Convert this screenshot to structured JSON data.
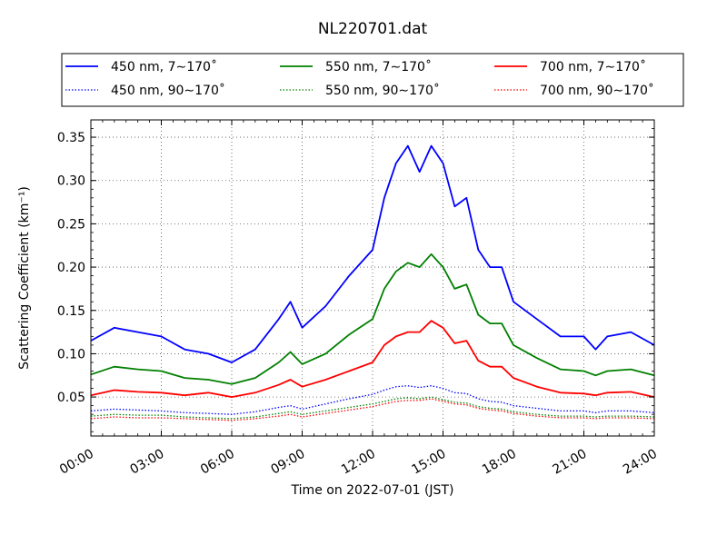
{
  "chart_data": {
    "type": "line",
    "title": "NL220701.dat",
    "xlabel": "Time on 2022-07-01 (JST)",
    "ylabel": "Scattering Coefficient (km⁻¹)",
    "xlim": [
      "00:00",
      "24:00"
    ],
    "ylim": [
      0.005,
      0.37
    ],
    "x_ticks": [
      "00:00",
      "03:00",
      "06:00",
      "09:00",
      "12:00",
      "15:00",
      "18:00",
      "21:00",
      "24:00"
    ],
    "y_ticks": [
      "0.05",
      "0.10",
      "0.15",
      "0.20",
      "0.25",
      "0.30",
      "0.35"
    ],
    "grid": true,
    "legend_position": "top",
    "x": [
      "00:00",
      "01:00",
      "02:00",
      "03:00",
      "04:00",
      "05:00",
      "06:00",
      "07:00",
      "08:00",
      "08:30",
      "09:00",
      "10:00",
      "11:00",
      "12:00",
      "12:30",
      "13:00",
      "13:30",
      "14:00",
      "14:30",
      "15:00",
      "15:30",
      "16:00",
      "16:30",
      "17:00",
      "17:30",
      "18:00",
      "19:00",
      "20:00",
      "21:00",
      "21:30",
      "22:00",
      "23:00",
      "24:00"
    ],
    "series": [
      {
        "name": "450 nm, 7∼170˚",
        "color": "#0000ff",
        "style": "solid",
        "values": [
          0.115,
          0.13,
          0.125,
          0.12,
          0.105,
          0.1,
          0.09,
          0.105,
          0.14,
          0.16,
          0.13,
          0.155,
          0.19,
          0.22,
          0.28,
          0.32,
          0.34,
          0.31,
          0.34,
          0.32,
          0.27,
          0.28,
          0.22,
          0.2,
          0.2,
          0.16,
          0.14,
          0.12,
          0.12,
          0.105,
          0.12,
          0.125,
          0.11
        ]
      },
      {
        "name": "450 nm, 90∼170˚",
        "color": "#0000ff",
        "style": "dotted",
        "values": [
          0.034,
          0.036,
          0.035,
          0.034,
          0.032,
          0.031,
          0.03,
          0.033,
          0.038,
          0.04,
          0.036,
          0.042,
          0.048,
          0.053,
          0.058,
          0.062,
          0.063,
          0.061,
          0.063,
          0.06,
          0.055,
          0.054,
          0.048,
          0.045,
          0.044,
          0.04,
          0.037,
          0.034,
          0.034,
          0.032,
          0.034,
          0.034,
          0.032
        ]
      },
      {
        "name": "550 nm, 7∼170˚",
        "color": "#008000",
        "style": "solid",
        "values": [
          0.076,
          0.085,
          0.082,
          0.08,
          0.072,
          0.07,
          0.065,
          0.072,
          0.09,
          0.102,
          0.088,
          0.1,
          0.122,
          0.14,
          0.175,
          0.195,
          0.205,
          0.2,
          0.215,
          0.2,
          0.175,
          0.18,
          0.145,
          0.135,
          0.135,
          0.11,
          0.095,
          0.082,
          0.08,
          0.075,
          0.08,
          0.082,
          0.075
        ]
      },
      {
        "name": "550 nm, 90∼170˚",
        "color": "#008000",
        "style": "dotted",
        "values": [
          0.028,
          0.03,
          0.029,
          0.029,
          0.027,
          0.026,
          0.025,
          0.027,
          0.031,
          0.033,
          0.03,
          0.034,
          0.038,
          0.042,
          0.045,
          0.048,
          0.049,
          0.048,
          0.05,
          0.047,
          0.044,
          0.043,
          0.039,
          0.037,
          0.036,
          0.033,
          0.03,
          0.028,
          0.028,
          0.027,
          0.028,
          0.028,
          0.027
        ]
      },
      {
        "name": "700 nm, 7∼170˚",
        "color": "#ff0000",
        "style": "solid",
        "values": [
          0.052,
          0.058,
          0.056,
          0.055,
          0.052,
          0.055,
          0.05,
          0.055,
          0.064,
          0.07,
          0.062,
          0.07,
          0.08,
          0.09,
          0.11,
          0.12,
          0.125,
          0.125,
          0.138,
          0.13,
          0.112,
          0.115,
          0.092,
          0.085,
          0.085,
          0.072,
          0.062,
          0.055,
          0.054,
          0.052,
          0.055,
          0.056,
          0.05
        ]
      },
      {
        "name": "700 nm, 90∼170˚",
        "color": "#ff0000",
        "style": "dotted",
        "values": [
          0.025,
          0.027,
          0.026,
          0.026,
          0.025,
          0.024,
          0.023,
          0.025,
          0.028,
          0.03,
          0.027,
          0.031,
          0.035,
          0.039,
          0.042,
          0.045,
          0.046,
          0.046,
          0.048,
          0.045,
          0.042,
          0.041,
          0.037,
          0.035,
          0.034,
          0.031,
          0.028,
          0.026,
          0.026,
          0.025,
          0.026,
          0.026,
          0.025
        ]
      }
    ]
  }
}
